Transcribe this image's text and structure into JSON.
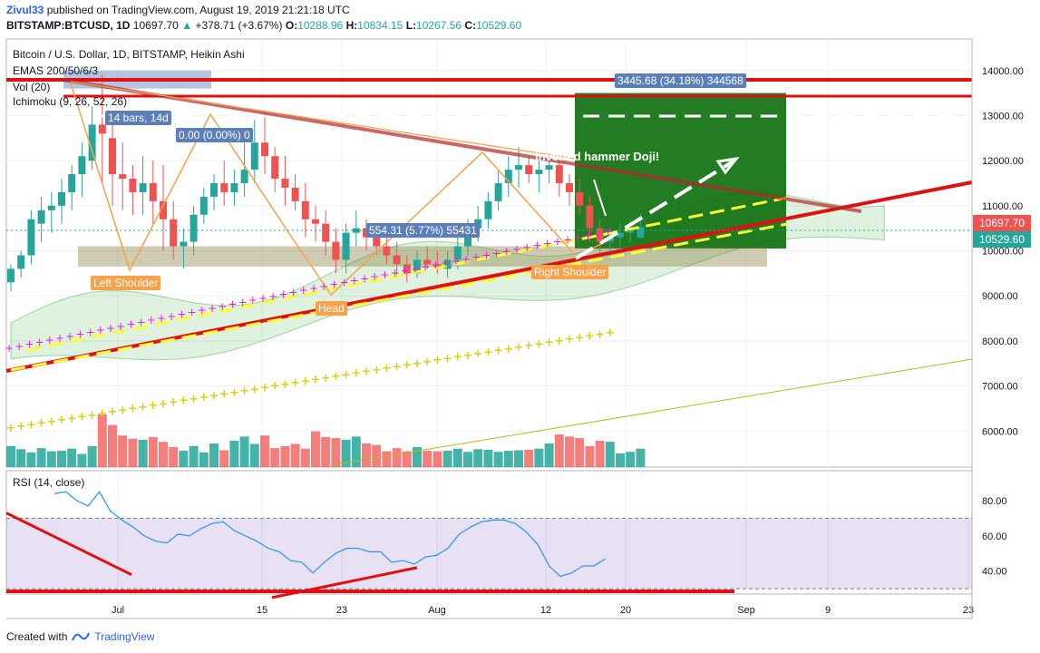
{
  "header": {
    "author": "Zivul33",
    "published_text": "published on TradingView.com, August 19, 2019 21:21:18 UTC",
    "ticker": "BITSTAMP:BTCUSD, 1D",
    "last": "10697.70",
    "change": "+378.71 (+3.67%)",
    "open_label": "O:",
    "open": "10288.96",
    "high_label": "H:",
    "high": "10834.15",
    "low_label": "L:",
    "low": "10267.56",
    "close_label": "C:",
    "close": "10529.60"
  },
  "legend": {
    "title": "Bitcoin / U.S. Dollar, 1D, BITSTAMP, Heikin Ashi",
    "emas": "EMAS 200/50/6/3",
    "vol": "Vol (20)",
    "ichimoku": "Ichimoku (9, 26, 52, 26)",
    "rsi": "RSI (14, close)"
  },
  "price_tags": {
    "current": "10697.70",
    "prev_close": "10529.60"
  },
  "annotations": {
    "measure_top": "3445.68 (34.18%) 344568",
    "bars_box": "14 bars, 14d",
    "zero_box": "0.00 (0.00%) 0",
    "mid_box": "554.31 (5.77%) 55431",
    "left_shoulder": "Left Shoulder",
    "head": "Head",
    "right_shoulder": "Right Shoulder",
    "inverted_hammer": "inverted hammer Doji!"
  },
  "footer": {
    "created_with": "Created with",
    "brand": "TradingView"
  },
  "colors": {
    "up": "#26a69a",
    "down": "#ef5350",
    "red_line": "#e01010",
    "yellow": "#ffff33",
    "magenta": "#e91ee0",
    "olive_dots": "#d4d41a",
    "rsi_line": "#2196f3",
    "rsi_band": "#7e57c2",
    "measure_blue": "#5b7fb8",
    "label_orange": "#f7a14a",
    "target_green": "#0b6e0b"
  },
  "chart_data": {
    "type": "candlestick",
    "x_ticks": [
      "Jul",
      "15",
      "23",
      "Aug",
      "12",
      "20",
      "Sep",
      "9",
      "23"
    ],
    "y_ticks": [
      6000,
      7000,
      8000,
      9000,
      10000,
      11000,
      12000,
      13000,
      14000
    ],
    "ylim": [
      5200,
      14700
    ],
    "rsi_ticks": [
      40,
      60,
      80
    ],
    "rsi_ylim": [
      27,
      97
    ],
    "candles": [
      {
        "o": 9300,
        "h": 9700,
        "l": 9100,
        "c": 9600
      },
      {
        "o": 9600,
        "h": 10000,
        "l": 9400,
        "c": 9900
      },
      {
        "o": 9900,
        "h": 10900,
        "l": 9700,
        "c": 10700
      },
      {
        "o": 10600,
        "h": 11200,
        "l": 10200,
        "c": 10900
      },
      {
        "o": 10900,
        "h": 11300,
        "l": 10400,
        "c": 11000
      },
      {
        "o": 11000,
        "h": 11600,
        "l": 10600,
        "c": 11300
      },
      {
        "o": 11300,
        "h": 11900,
        "l": 10900,
        "c": 11700
      },
      {
        "o": 11700,
        "h": 12400,
        "l": 11200,
        "c": 12100
      },
      {
        "o": 12000,
        "h": 13200,
        "l": 11800,
        "c": 12800
      },
      {
        "o": 12800,
        "h": 13900,
        "l": 11500,
        "c": 12600
      },
      {
        "o": 12500,
        "h": 12800,
        "l": 11000,
        "c": 11700
      },
      {
        "o": 11700,
        "h": 12400,
        "l": 10900,
        "c": 11600
      },
      {
        "o": 11600,
        "h": 11900,
        "l": 10800,
        "c": 11300
      },
      {
        "o": 11300,
        "h": 12100,
        "l": 10800,
        "c": 11500
      },
      {
        "o": 11500,
        "h": 12000,
        "l": 10600,
        "c": 11100
      },
      {
        "o": 11100,
        "h": 11900,
        "l": 10000,
        "c": 10700
      },
      {
        "o": 10700,
        "h": 11100,
        "l": 9800,
        "c": 10100
      },
      {
        "o": 10100,
        "h": 10500,
        "l": 9600,
        "c": 10200
      },
      {
        "o": 10200,
        "h": 11000,
        "l": 9900,
        "c": 10800
      },
      {
        "o": 10800,
        "h": 11400,
        "l": 10600,
        "c": 11200
      },
      {
        "o": 11200,
        "h": 11700,
        "l": 10900,
        "c": 11500
      },
      {
        "o": 11500,
        "h": 12000,
        "l": 11000,
        "c": 11300
      },
      {
        "o": 11300,
        "h": 11800,
        "l": 11000,
        "c": 11500
      },
      {
        "o": 11500,
        "h": 12400,
        "l": 11200,
        "c": 11800
      },
      {
        "o": 11800,
        "h": 12900,
        "l": 11500,
        "c": 12400
      },
      {
        "o": 12400,
        "h": 13100,
        "l": 11700,
        "c": 12100
      },
      {
        "o": 12100,
        "h": 12300,
        "l": 11300,
        "c": 11600
      },
      {
        "o": 11600,
        "h": 12100,
        "l": 11000,
        "c": 11400
      },
      {
        "o": 11400,
        "h": 11700,
        "l": 10900,
        "c": 11100
      },
      {
        "o": 11100,
        "h": 11500,
        "l": 10300,
        "c": 10700
      },
      {
        "o": 10700,
        "h": 11000,
        "l": 10200,
        "c": 10600
      },
      {
        "o": 10600,
        "h": 10900,
        "l": 9900,
        "c": 10200
      },
      {
        "o": 10200,
        "h": 10500,
        "l": 9500,
        "c": 9800
      },
      {
        "o": 9800,
        "h": 10600,
        "l": 9500,
        "c": 10400
      },
      {
        "o": 10400,
        "h": 10900,
        "l": 10100,
        "c": 10500
      },
      {
        "o": 10500,
        "h": 10700,
        "l": 10000,
        "c": 10300
      },
      {
        "o": 10300,
        "h": 10500,
        "l": 9900,
        "c": 10100
      },
      {
        "o": 10100,
        "h": 10400,
        "l": 9700,
        "c": 9900
      },
      {
        "o": 9900,
        "h": 10200,
        "l": 9400,
        "c": 9700
      },
      {
        "o": 9700,
        "h": 9900,
        "l": 9300,
        "c": 9500
      },
      {
        "o": 9500,
        "h": 10000,
        "l": 9400,
        "c": 9800
      },
      {
        "o": 9800,
        "h": 10100,
        "l": 9600,
        "c": 9700
      },
      {
        "o": 9700,
        "h": 10000,
        "l": 9500,
        "c": 9600
      },
      {
        "o": 9600,
        "h": 10000,
        "l": 9400,
        "c": 9800
      },
      {
        "o": 9800,
        "h": 10300,
        "l": 9600,
        "c": 10100
      },
      {
        "o": 10100,
        "h": 10700,
        "l": 9900,
        "c": 10500
      },
      {
        "o": 10500,
        "h": 11000,
        "l": 10200,
        "c": 10700
      },
      {
        "o": 10700,
        "h": 11300,
        "l": 10500,
        "c": 11100
      },
      {
        "o": 11100,
        "h": 11800,
        "l": 10900,
        "c": 11500
      },
      {
        "o": 11500,
        "h": 12100,
        "l": 11200,
        "c": 11800
      },
      {
        "o": 11800,
        "h": 12300,
        "l": 11400,
        "c": 11900
      },
      {
        "o": 11900,
        "h": 12100,
        "l": 11500,
        "c": 11700
      },
      {
        "o": 11700,
        "h": 12000,
        "l": 11300,
        "c": 11800
      },
      {
        "o": 11800,
        "h": 12100,
        "l": 11500,
        "c": 11900
      },
      {
        "o": 11900,
        "h": 12000,
        "l": 11200,
        "c": 11500
      },
      {
        "o": 11500,
        "h": 11700,
        "l": 11000,
        "c": 11300
      },
      {
        "o": 11300,
        "h": 11600,
        "l": 10800,
        "c": 11000
      },
      {
        "o": 11000,
        "h": 11200,
        "l": 10200,
        "c": 10500
      },
      {
        "o": 10500,
        "h": 10700,
        "l": 9900,
        "c": 10200
      },
      {
        "o": 10200,
        "h": 10500,
        "l": 9800,
        "c": 10300
      },
      {
        "o": 10300,
        "h": 10600,
        "l": 10100,
        "c": 10400
      },
      {
        "o": 10400,
        "h": 10700,
        "l": 10200,
        "c": 10500
      },
      {
        "o": 10289,
        "h": 10834,
        "l": 10268,
        "c": 10530
      }
    ],
    "volume": [
      40,
      34,
      28,
      36,
      30,
      31,
      35,
      25,
      40,
      100,
      80,
      60,
      54,
      52,
      57,
      48,
      38,
      31,
      40,
      28,
      45,
      32,
      50,
      58,
      44,
      60,
      36,
      40,
      44,
      35,
      68,
      57,
      55,
      52,
      58,
      45,
      42,
      30,
      36,
      30,
      38,
      31,
      30,
      31,
      35,
      29,
      34,
      33,
      29,
      31,
      32,
      33,
      35,
      45,
      62,
      58,
      55,
      40,
      50,
      48,
      26,
      29,
      35
    ],
    "rsi": [
      84,
      85,
      80,
      77,
      85,
      74,
      69,
      65,
      60,
      57,
      56,
      61,
      60,
      64,
      67,
      68,
      63,
      60,
      57,
      53,
      51,
      46,
      45,
      39,
      45,
      50,
      53,
      53,
      51,
      51,
      45,
      46,
      44,
      48,
      49,
      53,
      61,
      65,
      68,
      69,
      69,
      67,
      62,
      55,
      43,
      37,
      39,
      43,
      43,
      47
    ]
  }
}
